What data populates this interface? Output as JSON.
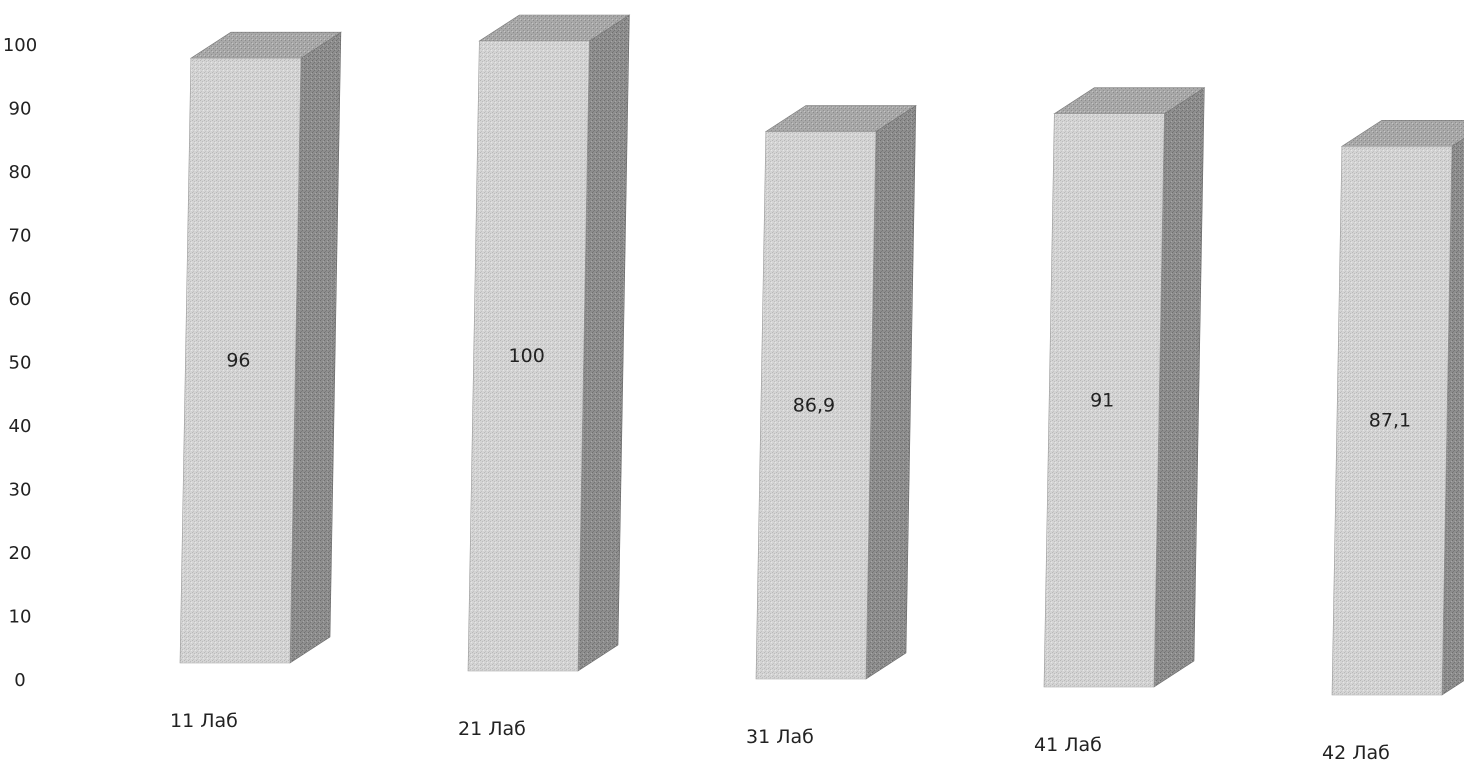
{
  "chart_data": {
    "type": "bar",
    "style": "3d-column",
    "categories": [
      "11 Лаб",
      "21 Лаб",
      "31 Лаб",
      "41 Лаб",
      "42 Лаб"
    ],
    "values": [
      96,
      100,
      86.9,
      91,
      87.1
    ],
    "data_labels": [
      "96",
      "100",
      "86,9",
      "91",
      "87,1"
    ],
    "y_ticks": [
      "0",
      "10",
      "20",
      "30",
      "40",
      "50",
      "60",
      "70",
      "80",
      "90",
      "100"
    ],
    "ylim": [
      0,
      100
    ],
    "grid": false,
    "legend": "none",
    "colors": {
      "front": "#cfcfcf",
      "side": "#8c8c8c",
      "top": "#a9a9a9"
    }
  }
}
